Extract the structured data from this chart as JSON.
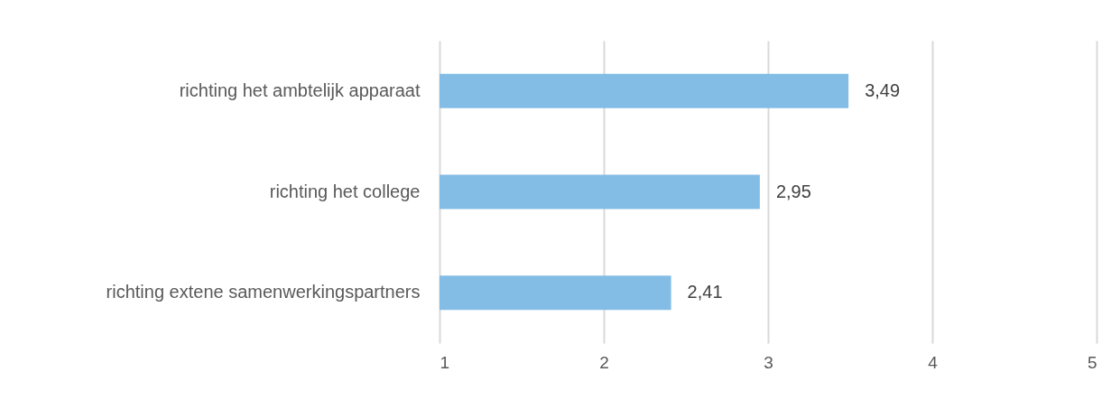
{
  "chart_data": {
    "type": "bar",
    "orientation": "horizontal",
    "categories": [
      "richting het ambtelijk apparaat",
      "richting het college",
      "richting extene samenwerkingspartners"
    ],
    "values": [
      3.49,
      2.95,
      2.41
    ],
    "value_labels": [
      "3,49",
      "2,95",
      "2,41"
    ],
    "color": "#83bde6",
    "xlim": [
      1,
      5
    ],
    "xticks": [
      1,
      2,
      3,
      4,
      5
    ],
    "grid": "x"
  }
}
